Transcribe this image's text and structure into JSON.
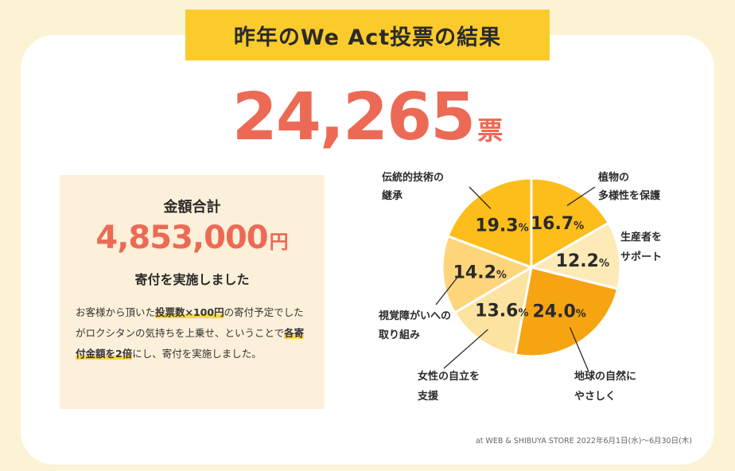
{
  "header": {
    "title": "昨年のWe Act投票の結果"
  },
  "total_votes": {
    "value": "24,265",
    "unit": "票"
  },
  "donation": {
    "label": "金額合計",
    "amount": "4,853,000",
    "unit": "円",
    "caption": "寄付を実施しました",
    "body": {
      "part1": "お客様から頂いた",
      "highlight1": "投票数×100円",
      "part2": "の寄付予定でしたがロクシタンの気持ちを上乗せ、ということで",
      "highlight2": "各寄付金額を2倍",
      "part3": "にし、寄付を実施しました。"
    }
  },
  "chart_data": {
    "type": "pie",
    "slices": [
      {
        "label": "植物の\n多様性を保護",
        "value": 16.7,
        "color": "#fdbd1a"
      },
      {
        "label": "生産者を\nサポート",
        "value": 12.2,
        "color": "#feeab7"
      },
      {
        "label": "地球の自然に\nやさしく",
        "value": 24.0,
        "color": "#f6a411"
      },
      {
        "label": "女性の自立を\n支援",
        "value": 13.6,
        "color": "#fde3a0"
      },
      {
        "label": "視覚障がいへの\n取り組み",
        "value": 14.2,
        "color": "#fed57b"
      },
      {
        "label": "伝統的技術の\n継承",
        "value": 19.3,
        "color": "#fdbd1a"
      }
    ],
    "unit": "%"
  },
  "footnote": "at WEB & SHIBUYA STORE 2022年6月1日(水)〜6月30日(木)"
}
